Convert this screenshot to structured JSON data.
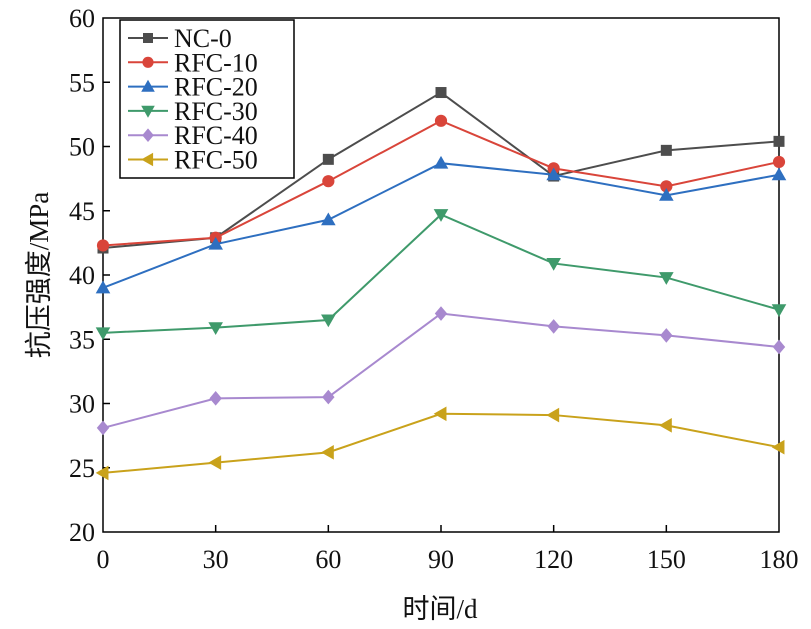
{
  "chart_data": {
    "type": "line",
    "xlabel": "时间/d",
    "ylabel": "抗压强度/MPa",
    "x": [
      0,
      30,
      60,
      90,
      120,
      150,
      180
    ],
    "xlim": [
      0,
      180
    ],
    "ylim": [
      20,
      60
    ],
    "xticks": [
      "0",
      "30",
      "60",
      "90",
      "120",
      "150",
      "180"
    ],
    "yticks": [
      "20",
      "25",
      "30",
      "35",
      "40",
      "45",
      "50",
      "55",
      "60"
    ],
    "grid": false,
    "legend_position": "top-left",
    "series": [
      {
        "name": "NC-0",
        "color": "#4d4d4d",
        "marker": "square",
        "values": [
          42.1,
          42.9,
          49.0,
          54.2,
          47.7,
          49.7,
          50.4
        ]
      },
      {
        "name": "RFC-10",
        "color": "#d9453a",
        "marker": "circle",
        "values": [
          42.3,
          42.9,
          47.3,
          52.0,
          48.3,
          46.9,
          48.8
        ]
      },
      {
        "name": "RFC-20",
        "color": "#2e6fc0",
        "marker": "triangle-up",
        "values": [
          39.0,
          42.4,
          44.3,
          48.7,
          47.8,
          46.2,
          47.8
        ]
      },
      {
        "name": "RFC-30",
        "color": "#3f9a6b",
        "marker": "triangle-down",
        "values": [
          35.5,
          35.9,
          36.5,
          44.7,
          40.9,
          39.8,
          37.3
        ]
      },
      {
        "name": "RFC-40",
        "color": "#a889cf",
        "marker": "diamond",
        "values": [
          28.1,
          30.4,
          30.5,
          37.0,
          36.0,
          35.3,
          34.4
        ]
      },
      {
        "name": "RFC-50",
        "color": "#c9a21b",
        "marker": "triangle-left",
        "values": [
          24.6,
          25.4,
          26.2,
          29.2,
          29.1,
          28.3,
          26.6
        ]
      }
    ]
  }
}
